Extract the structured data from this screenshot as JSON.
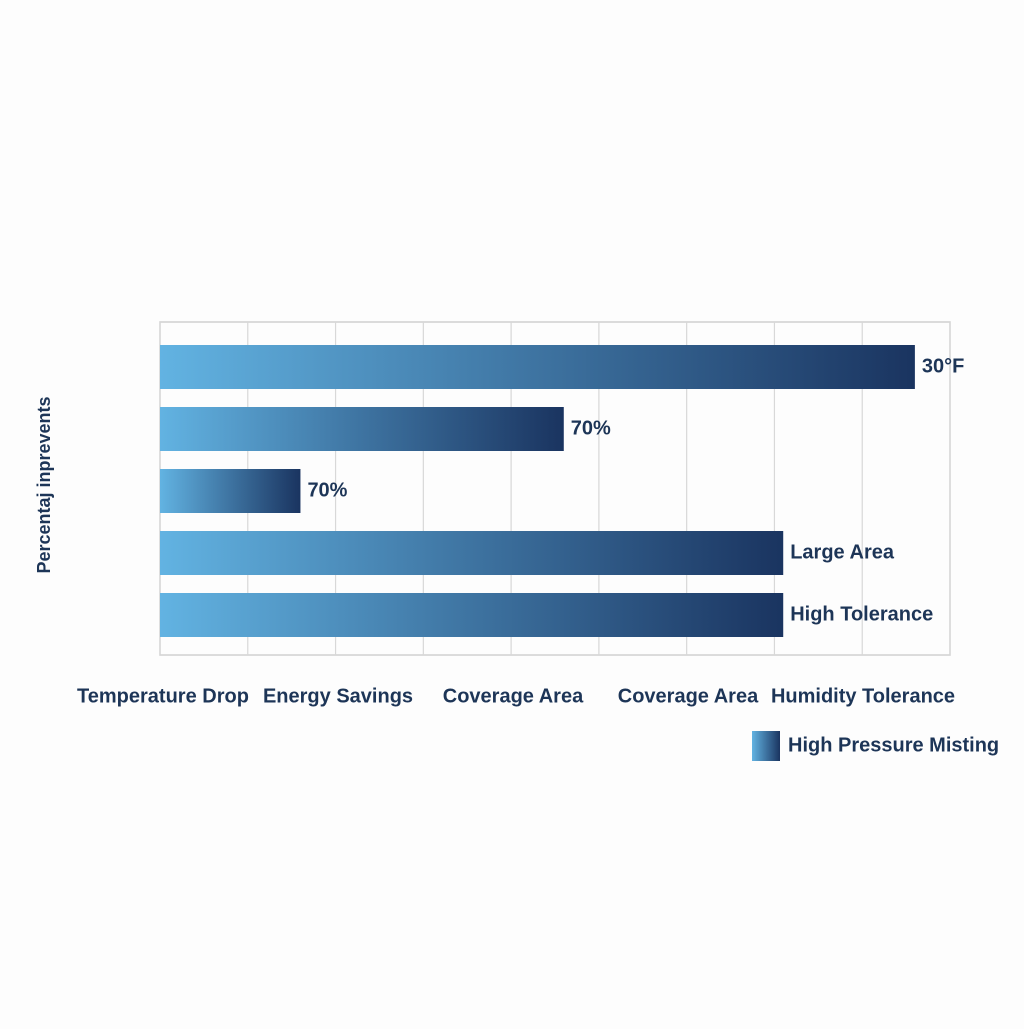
{
  "chart_data": {
    "type": "hbar",
    "y_axis_label": "Percentaj inprevents",
    "categories": [
      "Temperature Drop",
      "Energy Savings",
      "Coverage Area",
      "Coverage Area",
      "Humidity Tolerance"
    ],
    "series": [
      {
        "name": "High Pressure Misting",
        "colors": [
          "#62b3e2",
          "#1a3460"
        ],
        "values": [
          86,
          46,
          16,
          71,
          71
        ],
        "annotations": [
          "30°F",
          "70%",
          "70%",
          "Large Area",
          "High Tolerance"
        ]
      }
    ],
    "xlim": [
      0,
      90
    ],
    "xticks": [
      0,
      10,
      20,
      30,
      40,
      50,
      60,
      70,
      80,
      90
    ],
    "grid": true
  }
}
